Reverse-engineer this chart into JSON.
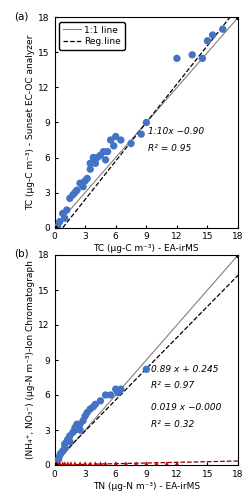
{
  "panel_a": {
    "label": "(a)",
    "scatter_x": [
      0.3,
      0.5,
      0.8,
      1.0,
      1.2,
      1.5,
      1.8,
      2.0,
      2.2,
      2.5,
      2.8,
      3.0,
      3.2,
      3.5,
      3.5,
      3.8,
      4.0,
      4.2,
      4.5,
      4.8,
      5.0,
      5.2,
      5.5,
      5.8,
      6.0,
      6.5,
      7.5,
      8.5,
      9.0,
      12.0,
      13.5,
      14.5,
      15.0,
      15.5,
      16.5
    ],
    "scatter_y": [
      0.1,
      0.5,
      1.2,
      0.8,
      1.5,
      2.5,
      2.8,
      3.0,
      3.2,
      3.8,
      3.5,
      4.0,
      4.2,
      5.0,
      5.5,
      6.0,
      5.5,
      6.0,
      6.2,
      6.5,
      5.8,
      6.5,
      7.5,
      7.0,
      7.8,
      7.5,
      7.2,
      8.0,
      9.0,
      14.5,
      14.8,
      14.5,
      16.0,
      16.5,
      17.0
    ],
    "scatter_color": "#4472C4",
    "marker": "o",
    "marker_size": 28,
    "one_to_one_color": "#808080",
    "reg_line_slope": 1.1,
    "reg_line_intercept": -0.9,
    "reg_line_color": "black",
    "reg_line_style": "--",
    "eq_text": "1:10x −0.90",
    "r2_text": "R² = 0.95",
    "eq_x": 9.2,
    "eq_y": 7.8,
    "xlim": [
      0,
      18
    ],
    "ylim": [
      0,
      18
    ],
    "xticks": [
      0,
      3,
      6,
      9,
      12,
      15,
      18
    ],
    "yticks": [
      0,
      3,
      6,
      9,
      12,
      15,
      18
    ],
    "xlabel": "TC (μg-C m⁻³) - EA-irMS",
    "ylabel": "TC (μg-C m⁻³) - Sunset EC-OC analyzer",
    "legend_labels": [
      "1:1 line",
      "Reg.line"
    ]
  },
  "panel_b": {
    "label": "(b)",
    "scatter_blue_x": [
      0.2,
      0.4,
      0.5,
      0.6,
      0.8,
      1.0,
      1.0,
      1.2,
      1.3,
      1.5,
      1.5,
      1.8,
      2.0,
      2.0,
      2.2,
      2.5,
      2.5,
      2.8,
      3.0,
      3.2,
      3.5,
      3.8,
      4.0,
      4.5,
      5.0,
      5.5,
      6.0,
      6.2,
      6.5,
      9.0
    ],
    "scatter_blue_y": [
      0.3,
      0.5,
      0.8,
      1.0,
      1.2,
      1.5,
      1.8,
      2.0,
      2.2,
      2.0,
      2.5,
      2.8,
      3.0,
      3.2,
      3.5,
      3.0,
      3.5,
      3.8,
      4.2,
      4.5,
      4.8,
      5.0,
      5.2,
      5.5,
      6.0,
      6.0,
      6.5,
      6.2,
      6.5,
      8.2
    ],
    "scatter_red_x": [
      0.2,
      0.5,
      0.8,
      1.0,
      1.3,
      1.6,
      2.0,
      2.5,
      3.0,
      3.5,
      4.0,
      4.5,
      5.0,
      6.0,
      7.0,
      8.0,
      9.0,
      10.0,
      11.0,
      12.0
    ],
    "scatter_red_y": [
      0.05,
      0.05,
      0.05,
      0.05,
      0.05,
      0.05,
      0.05,
      0.05,
      0.05,
      0.05,
      0.05,
      0.05,
      0.05,
      0.05,
      0.05,
      0.05,
      0.05,
      0.05,
      0.05,
      0.05
    ],
    "scatter_blue_color": "#4472C4",
    "scatter_red_color": "#CC0000",
    "blue_marker": "o",
    "red_marker": "^",
    "marker_size_blue": 28,
    "marker_size_red": 20,
    "one_to_one_color": "#808080",
    "reg_blue_slope": 0.89,
    "reg_blue_intercept": 0.245,
    "reg_red_slope": 0.019,
    "reg_red_intercept": 0.0,
    "reg_line_color": "black",
    "reg_line_style": "--",
    "eq_blue_text": "0.89 x + 0.245",
    "r2_blue_text": "R² = 0.97",
    "eq_blue_x": 9.5,
    "eq_blue_y": 7.8,
    "eq_red_text": "0.019 x −0.000",
    "r2_red_text": "R² = 0.32",
    "eq_red_x": 9.5,
    "eq_red_y": 4.5,
    "xlim": [
      0,
      18
    ],
    "ylim": [
      0,
      18
    ],
    "xticks": [
      0,
      3,
      6,
      9,
      12,
      15,
      18
    ],
    "yticks": [
      0,
      3,
      6,
      9,
      12,
      15,
      18
    ],
    "xlabel": "TN (μg-N m⁻³) - EA-irMS",
    "ylabel": "(NH₄⁺, NO₃⁻) (μg-N m⁻³)-Ion Chromatograph"
  },
  "figure_bg": "#FFFFFF",
  "font_size": 7.5,
  "legend_font_size": 6.5,
  "label_font_size": 6.5,
  "tick_font_size": 6.5,
  "eq_font_size": 6.5
}
